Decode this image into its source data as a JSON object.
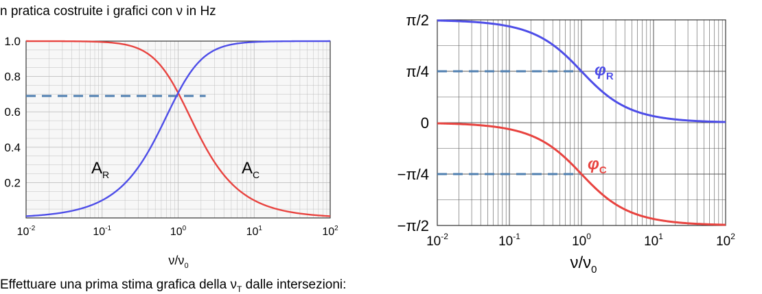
{
  "header_text": "n pratica costruite i grafici con ν in Hz",
  "footer_text": "Effettuare una prima stima grafica della ν",
  "footer_subscript": "T",
  "footer_suffix": " dalle intersezioni:",
  "colors": {
    "red": "#e8433f",
    "blue": "#4d4de8",
    "dash": "#4f7fb0",
    "grid": "#bfbfbf"
  },
  "chart_data": [
    {
      "type": "line",
      "x_scale": "log",
      "xlim": [
        0.01,
        100
      ],
      "ylim": [
        0,
        1
      ],
      "x_ticks": [
        "10-2",
        "10-1",
        "100",
        "101",
        "102"
      ],
      "y_ticks": [
        "1.0",
        "0.8",
        "0.6",
        "0.4",
        "0.2"
      ],
      "xlabel": "ν/ν0",
      "grid": true,
      "series": [
        {
          "name": "AR",
          "color": "#e8433f",
          "formula": "1/sqrt(1+x^2)",
          "x": [
            0.01,
            0.1,
            0.3,
            1,
            3,
            10,
            100
          ],
          "y": [
            1.0,
            0.995,
            0.958,
            0.707,
            0.316,
            0.0995,
            0.01
          ]
        },
        {
          "name": "AC",
          "color": "#4d4de8",
          "formula": "x/sqrt(1+x^2)",
          "x": [
            0.01,
            0.1,
            0.3,
            1,
            3,
            10,
            100
          ],
          "y": [
            0.01,
            0.0995,
            0.287,
            0.707,
            0.949,
            0.995,
            1.0
          ]
        }
      ],
      "annotations": [
        {
          "type": "dashed-hline",
          "y": 0.69,
          "x_from": 0.01,
          "x_to": 2.3
        },
        {
          "type": "label",
          "text": "A",
          "sub": "R"
        },
        {
          "type": "label",
          "text": "A",
          "sub": "C"
        }
      ]
    },
    {
      "type": "line",
      "x_scale": "log",
      "xlim": [
        0.01,
        100
      ],
      "ylim": [
        -1.5708,
        1.5708
      ],
      "x_ticks": [
        "10-2",
        "10-1",
        "100",
        "101",
        "102"
      ],
      "y_ticks": [
        "π/2",
        "π/4",
        "0",
        "−π/4",
        "−π/2"
      ],
      "xlabel": "ν/ν0",
      "grid": true,
      "series": [
        {
          "name": "φR",
          "color": "#4d4de8",
          "formula": "atan(1/x)",
          "x": [
            0.01,
            0.1,
            1,
            10,
            100
          ],
          "y": [
            1.5608,
            1.4711,
            0.7854,
            0.0997,
            0.01
          ]
        },
        {
          "name": "φC",
          "color": "#e8433f",
          "formula": "-atan(x)",
          "x": [
            0.01,
            0.1,
            1,
            10,
            100
          ],
          "y": [
            -0.01,
            -0.0997,
            -0.7854,
            -1.4711,
            -1.5608
          ]
        }
      ],
      "annotations": [
        {
          "type": "dashed-hline",
          "y": 0.7854,
          "x_from": 0.01,
          "x_to": 1
        },
        {
          "type": "dashed-hline",
          "y": -0.7854,
          "x_from": 0.01,
          "x_to": 1
        },
        {
          "type": "label",
          "text": "φ",
          "sub": "R"
        },
        {
          "type": "label",
          "text": "φ",
          "sub": "C"
        }
      ]
    }
  ],
  "labels": {
    "left_x_base": "ν/ν",
    "left_x_sub": "0",
    "right_x_base": "ν/ν",
    "right_x_sub": "0",
    "ar_base": "A",
    "ar_sub": "R",
    "ac_base": "A",
    "ac_sub": "C",
    "phir_base": "φ",
    "phir_sub": "R",
    "phic_base": "φ",
    "phic_sub": "C"
  }
}
